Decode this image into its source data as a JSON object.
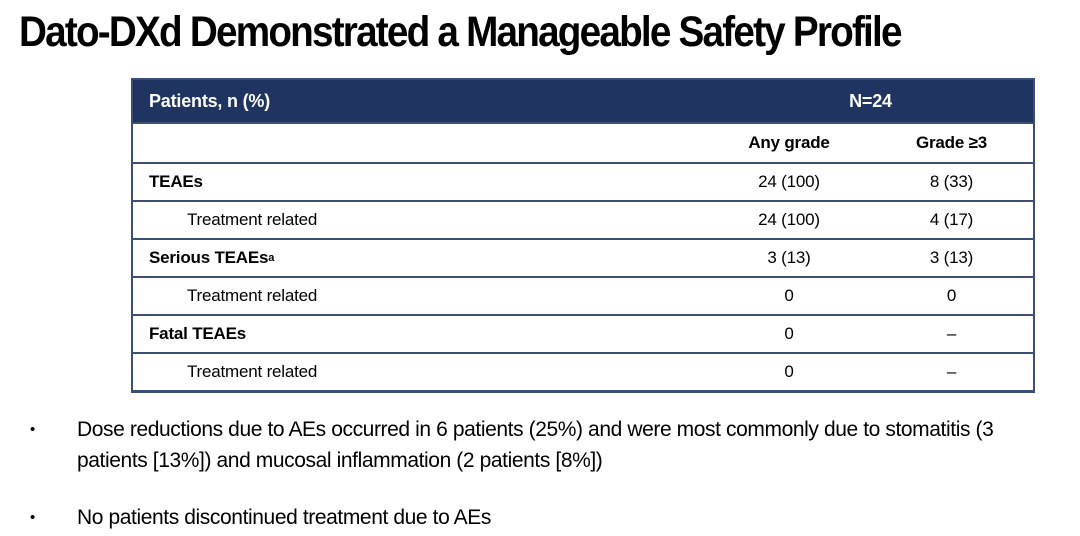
{
  "title": "Dato-DXd Demonstrated a Manageable Safety Profile",
  "table": {
    "header_label": "Patients, n (%)",
    "n_header": "N=24",
    "col_headers": [
      "Any grade",
      "Grade ≥3"
    ],
    "rows": [
      {
        "label": "TEAEs",
        "any_grade": "24 (100)",
        "grade_ge3": "8 (33)"
      },
      {
        "label": "Treatment related",
        "any_grade": "24 (100)",
        "grade_ge3": "4 (17)"
      },
      {
        "label": "Serious TEAEs",
        "footnote_marker": "a",
        "any_grade": "3 (13)",
        "grade_ge3": "3 (13)"
      },
      {
        "label": "Treatment related",
        "any_grade": "0",
        "grade_ge3": "0"
      },
      {
        "label": "Fatal TEAEs",
        "any_grade": "0",
        "grade_ge3": "–"
      },
      {
        "label": "Treatment related",
        "any_grade": "0",
        "grade_ge3": "–"
      }
    ]
  },
  "bullets": {
    "marker": "•",
    "items": [
      "Dose reductions due to AEs occurred in 6 patients (25%) and were most commonly due to stomatitis (3 patients [13%]) and mucosal inflammation (2 patients [8%])",
      "No patients discontinued treatment due to AEs"
    ]
  },
  "colors": {
    "header_bg": "#1f3460",
    "header_text": "#ffffff",
    "border": "#3b4f74"
  }
}
